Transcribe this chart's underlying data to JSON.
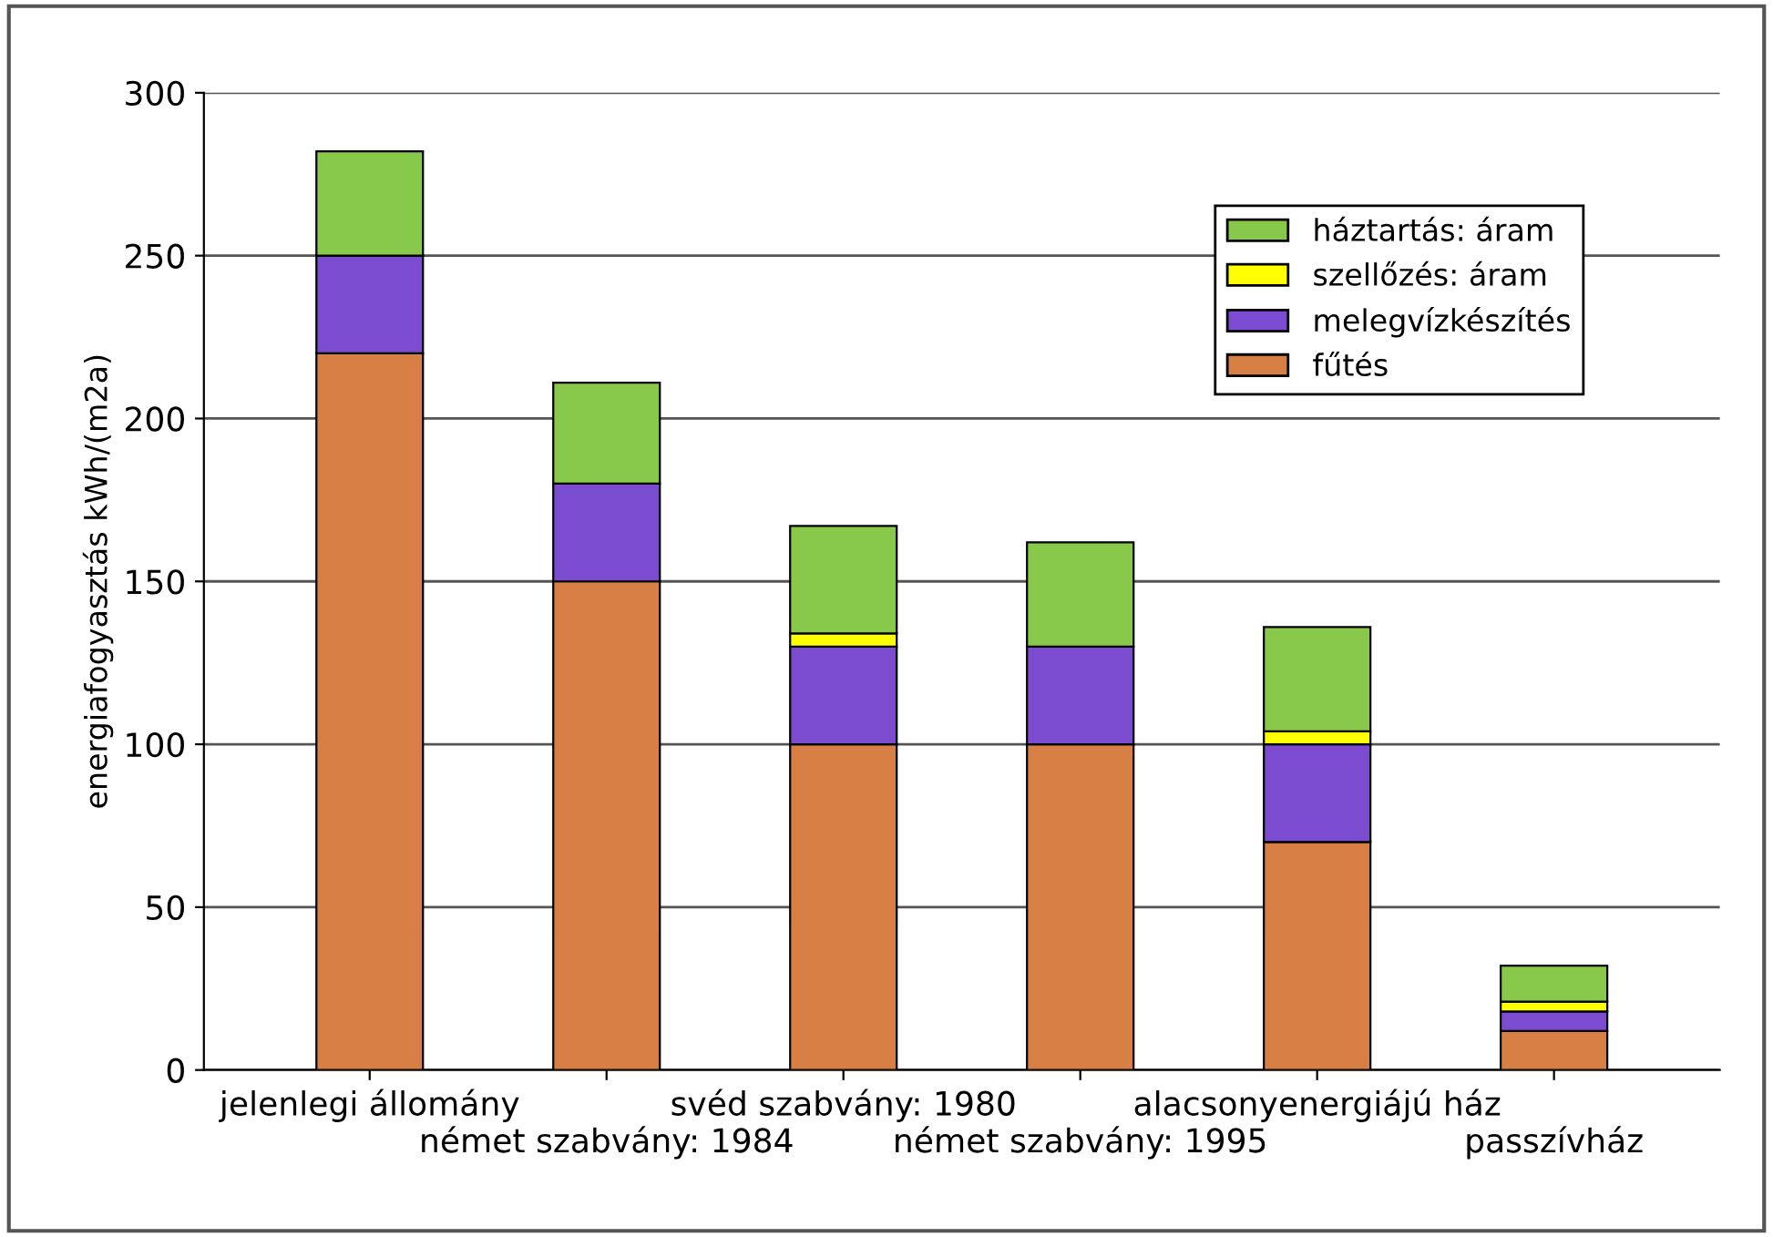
{
  "chart_data": {
    "type": "bar",
    "stacked": true,
    "ylabel": "energiafogyasztás kWh/(m2a)",
    "categories": [
      "jelenlegi állomány",
      "német szabvány: 1984",
      "svéd szabvány: 1980",
      "német szabvány: 1995",
      "alacsonyenergiájú ház",
      "passzívház"
    ],
    "series": [
      {
        "name": "fűtés",
        "color": "#d77f45",
        "values": [
          220,
          150,
          100,
          100,
          70,
          12
        ]
      },
      {
        "name": "melegvízkészítés",
        "color": "#7b4bd0",
        "values": [
          30,
          30,
          30,
          30,
          30,
          6
        ]
      },
      {
        "name": "szellőzés: áram",
        "color": "#ffff00",
        "values": [
          0,
          0,
          4,
          0,
          4,
          3
        ]
      },
      {
        "name": "háztartás: áram",
        "color": "#88c84a",
        "values": [
          32,
          31,
          33,
          32,
          32,
          11
        ]
      }
    ],
    "ylim": [
      0,
      300
    ],
    "yticks": [
      0,
      50,
      100,
      150,
      200,
      250,
      300
    ],
    "grid": "y",
    "legend": "top right"
  }
}
